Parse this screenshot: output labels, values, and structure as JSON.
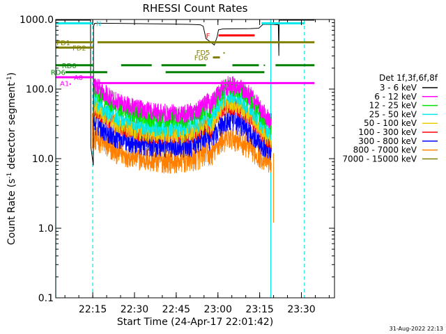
{
  "chart_data": {
    "type": "line",
    "title": "RHESSI Count Rates",
    "xlabel": "Start Time (24-Apr-17 22:01:42)",
    "ylabel_main": "Count Rate (s",
    "ylabel_sup1": "-1",
    "ylabel_mid": " detector segment",
    "ylabel_sup2": "-1",
    "ylabel_end": ")",
    "y_scale": "log",
    "ylim": [
      0.1,
      1000.0
    ],
    "xlim": [
      "22:01:42",
      "23:41:54"
    ],
    "x_ticks": [
      {
        "label": "22:15",
        "min": 13.3
      },
      {
        "label": "22:30",
        "min": 28.3
      },
      {
        "label": "22:45",
        "min": 43.3
      },
      {
        "label": "23:00",
        "min": 58.3
      },
      {
        "label": "23:15",
        "min": 73.3
      },
      {
        "label": "23:30",
        "min": 88.3
      }
    ],
    "y_ticks": [
      {
        "label": "0.1",
        "value": 0.1
      },
      {
        "label": "1.0",
        "value": 1.0
      },
      {
        "label": "10.0",
        "value": 10.0
      },
      {
        "label": "100.0",
        "value": 100.0
      },
      {
        "label": "1000.0",
        "value": 1000.0
      }
    ],
    "legend_title": "Det 1f,3f,6f,8f",
    "legend_position": "right",
    "timestamp": "31-Aug-2022 22:13",
    "profile_times": [
      13.5,
      15,
      17,
      19,
      22,
      25,
      28,
      31,
      34,
      37,
      40,
      43,
      46,
      49,
      52,
      54,
      55.5,
      57,
      58.5,
      60,
      62,
      64,
      66,
      68,
      70,
      72,
      74,
      76,
      77.5
    ],
    "series": [
      {
        "name": "3 - 6 keV",
        "color": "#000000",
        "values": []
      },
      {
        "name": "6 - 12 keV",
        "color": "#ff00ff",
        "values": [
          115,
          110,
          90,
          78,
          68,
          60,
          55,
          50,
          48,
          46,
          45,
          44,
          44,
          46,
          52,
          70,
          58,
          72,
          90,
          105,
          112,
          112,
          105,
          92,
          80,
          62,
          48,
          40,
          36
        ]
      },
      {
        "name": "12 - 25 keV",
        "color": "#00e000",
        "values": [
          100,
          90,
          76,
          64,
          56,
          50,
          45,
          41,
          39,
          38,
          38,
          38,
          38,
          40,
          46,
          58,
          48,
          62,
          82,
          96,
          105,
          105,
          96,
          84,
          70,
          54,
          42,
          34,
          30
        ]
      },
      {
        "name": "25 - 50 keV",
        "color": "#00e8e8",
        "values": [
          70,
          64,
          54,
          46,
          40,
          36,
          32,
          30,
          29,
          28,
          28,
          28,
          28,
          30,
          34,
          44,
          35,
          45,
          60,
          72,
          80,
          80,
          72,
          62,
          52,
          40,
          31,
          26,
          23
        ]
      },
      {
        "name": "50 - 100 keV",
        "color": "#e8d000",
        "values": [
          55,
          52,
          44,
          37,
          32,
          29,
          26,
          24,
          23,
          23,
          23,
          23,
          23,
          24,
          28,
          34,
          28,
          36,
          46,
          56,
          62,
          62,
          56,
          48,
          40,
          31,
          25,
          21,
          19
        ]
      },
      {
        "name": "100 - 300 keV",
        "color": "#ff0000",
        "values": [
          52,
          48,
          41,
          35,
          30,
          27,
          25,
          23,
          22,
          22,
          22,
          22,
          22,
          23,
          26,
          32,
          26,
          34,
          44,
          52,
          58,
          58,
          52,
          45,
          38,
          30,
          24,
          20,
          18
        ]
      },
      {
        "name": "300 - 800 keV",
        "color": "#0000ff",
        "values": [
          33,
          32,
          28,
          24,
          21,
          19,
          17.5,
          16.5,
          16,
          15.5,
          15.5,
          15.5,
          15.5,
          16,
          18,
          22,
          19,
          23,
          28,
          32,
          35,
          35,
          32,
          28,
          24,
          20,
          17,
          15,
          14
        ]
      },
      {
        "name": "800 - 7000 keV",
        "color": "#ff8000",
        "values": [
          20,
          19,
          17,
          14,
          12.5,
          11.5,
          10.5,
          10,
          9.5,
          9.3,
          9.2,
          9.2,
          9.3,
          9.6,
          10.5,
          12.5,
          11,
          13,
          16,
          18,
          19.5,
          19.5,
          18,
          16,
          14,
          12,
          10.5,
          9.5,
          8.8
        ]
      },
      {
        "name": "7000 - 15000 keV",
        "color": "#808000",
        "values": []
      }
    ],
    "vlines": [
      {
        "min": 0,
        "color": "#00e8e8",
        "style": "solid"
      },
      {
        "min": 13.3,
        "color": "#00e8e8",
        "style": "dashed"
      },
      {
        "min": 77.3,
        "color": "#00e8e8",
        "style": "solid"
      },
      {
        "min": 89.4,
        "color": "#00e8e8",
        "style": "dashed"
      }
    ],
    "flags": [
      {
        "label": "N",
        "color": "#00e8e8",
        "value": 880,
        "segments": [
          [
            0,
            13.3
          ],
          [
            74,
            89.4
          ]
        ],
        "label_min": 14.5
      },
      {
        "label": "F",
        "color": "#ff0000",
        "value": 590,
        "segments": [
          [
            58.5,
            71.5
          ]
        ],
        "label_min": 54.0
      },
      {
        "label": "FD1",
        "color": "#808000",
        "value": 470,
        "segments": [
          [
            0,
            13.3
          ],
          [
            15.0,
            93.0
          ]
        ],
        "label_min": 0.3
      },
      {
        "label": "FD2",
        "color": "#808000",
        "value": 395,
        "segments": [
          [
            0,
            13.3
          ]
        ],
        "label_min": 6.0
      },
      {
        "label": "FD5",
        "color": "#808000",
        "value": 340,
        "segments": [],
        "label_min": 50.5
      },
      {
        "label": "FD6",
        "color": "#808000",
        "value": 285,
        "segments": [
          [
            56.5,
            59.0
          ]
        ],
        "label_min": 49.8
      },
      {
        "label": "RD0",
        "color": "#008000",
        "value": 220,
        "segments": [
          [
            0,
            13.3
          ],
          [
            23.5,
            34.5
          ],
          [
            38.0,
            54.0
          ],
          [
            63.5,
            73.0
          ],
          [
            79.0,
            93.0
          ]
        ],
        "label_min": 2.2
      },
      {
        "label": "RD6",
        "color": "#008000",
        "value": 175,
        "segments": [
          [
            3.5,
            18.5
          ],
          [
            39.5,
            75.0
          ]
        ],
        "label_min": -1.8
      },
      {
        "label": "A0",
        "color": "#ff00ff",
        "value": 148,
        "segments": [
          [
            0,
            13.3
          ]
        ],
        "label_min": 6.5
      },
      {
        "label": "A1",
        "color": "#ff00ff",
        "value": 122,
        "segments": [
          [
            13.3,
            93.0
          ]
        ],
        "label_min": 1.5
      }
    ],
    "atten_trace": {
      "color": "#000000",
      "points": [
        [
          0,
          1000
        ],
        [
          12.5,
          1000
        ],
        [
          12.6,
          15
        ],
        [
          13.5,
          8
        ],
        [
          13.6,
          800
        ],
        [
          14,
          880
        ],
        [
          20,
          880
        ],
        [
          30,
          870
        ],
        [
          40,
          860
        ],
        [
          48,
          850
        ],
        [
          52,
          840
        ],
        [
          53,
          800
        ],
        [
          54,
          530
        ],
        [
          55.5,
          480
        ],
        [
          57,
          430
        ],
        [
          58,
          560
        ],
        [
          58.5,
          710
        ],
        [
          60,
          730
        ],
        [
          65,
          735
        ],
        [
          70,
          740
        ],
        [
          73,
          750
        ],
        [
          74.5,
          850
        ],
        [
          78,
          850
        ],
        [
          80,
          840
        ],
        [
          80.2,
          300
        ],
        [
          80.3,
          1000
        ],
        [
          93,
          1000
        ]
      ]
    }
  }
}
